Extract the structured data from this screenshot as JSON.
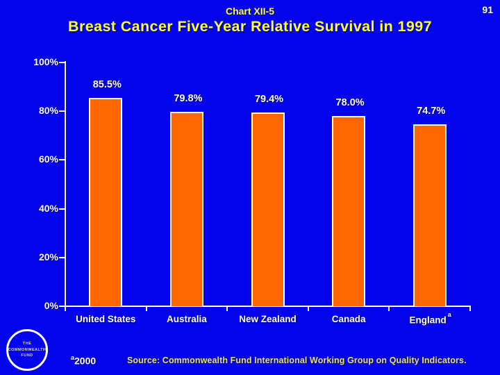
{
  "page": {
    "number": "91"
  },
  "header": {
    "chart_label": "Chart XII-5",
    "title": "Breast Cancer Five-Year Relative Survival in 1997"
  },
  "chart_data": {
    "type": "bar",
    "title": "Breast Cancer Five-Year Relative Survival in 1997",
    "categories": [
      "United States",
      "Australia",
      "New Zealand",
      "Canada",
      "England"
    ],
    "category_superscripts": [
      "",
      "",
      "",
      "",
      "a"
    ],
    "values": [
      85.5,
      79.8,
      79.4,
      78.0,
      74.7
    ],
    "value_labels": [
      "85.5%",
      "79.8%",
      "79.4%",
      "78.0%",
      "74.7%"
    ],
    "y_tick_labels": [
      "100%",
      "80%",
      "60%",
      "40%",
      "20%",
      "0%"
    ],
    "ylim": [
      0,
      100
    ],
    "xlabel": "",
    "ylabel": "",
    "grid": false,
    "legend": null,
    "bar_color": "#FF6600",
    "bar_outline_color": "#FFFFFF",
    "label_color": "#FFFFFF"
  },
  "footer": {
    "logo_lines": [
      "THE",
      "COMMONWEALTH",
      "FUND"
    ],
    "footnote_superscript": "a",
    "footnote_text": "2000",
    "source": "Source: Commonwealth Fund International Working Group on Quality Indicators."
  },
  "colors": {
    "background": "#0404EC",
    "title_yellow": "#FFFF33",
    "source_yellow": "#E8E26B",
    "bar_orange": "#FF6600",
    "text_white": "#FFFFFF"
  }
}
